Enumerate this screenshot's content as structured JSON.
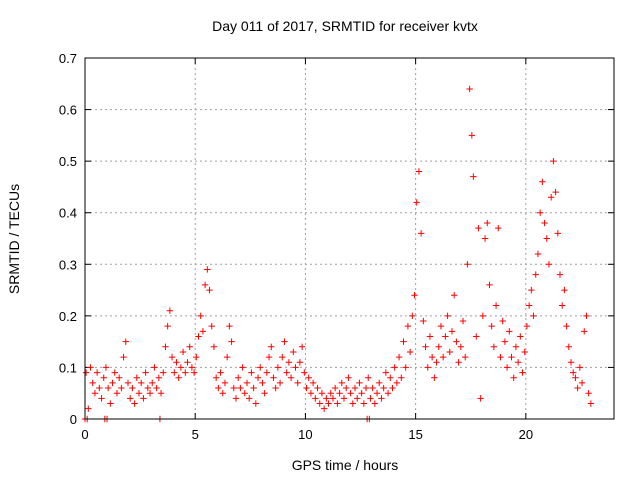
{
  "chart_data": {
    "type": "scatter",
    "title": "Day 011 of 2017, SRMTID for receiver kvtx",
    "xlabel": "GPS time / hours",
    "ylabel": "SRMTID / TECUs",
    "xlim": [
      0,
      24
    ],
    "ylim": [
      0,
      0.7
    ],
    "xticks": [
      0,
      5,
      10,
      15,
      20
    ],
    "yticks": [
      0,
      0.1,
      0.2,
      0.3,
      0.4,
      0.5,
      0.6,
      0.7
    ],
    "grid": true,
    "marker": "+",
    "color": "#ff0000",
    "series": [
      {
        "name": "SRMTID",
        "points": [
          [
            0.05,
            0.09
          ],
          [
            0.15,
            0.02
          ],
          [
            0.25,
            0.1
          ],
          [
            0.35,
            0.07
          ],
          [
            0.45,
            0.05
          ],
          [
            0.55,
            0.09
          ],
          [
            0.65,
            0.06
          ],
          [
            0.75,
            0.04
          ],
          [
            0.85,
            0.08
          ],
          [
            0.95,
            0.1
          ],
          [
            1.05,
            0.06
          ],
          [
            1.15,
            0.03
          ],
          [
            1.25,
            0.07
          ],
          [
            1.35,
            0.09
          ],
          [
            1.45,
            0.05
          ],
          [
            1.55,
            0.08
          ],
          [
            1.65,
            0.06
          ],
          [
            1.75,
            0.12
          ],
          [
            1.85,
            0.15
          ],
          [
            1.95,
            0.07
          ],
          [
            2.05,
            0.04
          ],
          [
            2.15,
            0.06
          ],
          [
            2.25,
            0.03
          ],
          [
            2.35,
            0.08
          ],
          [
            2.45,
            0.05
          ],
          [
            2.55,
            0.07
          ],
          [
            2.65,
            0.04
          ],
          [
            2.75,
            0.09
          ],
          [
            2.85,
            0.06
          ],
          [
            2.95,
            0.05
          ],
          [
            3.05,
            0.07
          ],
          [
            3.15,
            0.1
          ],
          [
            3.25,
            0.06
          ],
          [
            3.35,
            0.08
          ],
          [
            3.45,
            0.05
          ],
          [
            3.55,
            0.09
          ],
          [
            3.65,
            0.14
          ],
          [
            3.75,
            0.18
          ],
          [
            3.85,
            0.21
          ],
          [
            3.95,
            0.12
          ],
          [
            4.05,
            0.09
          ],
          [
            4.15,
            0.11
          ],
          [
            4.25,
            0.08
          ],
          [
            4.35,
            0.1
          ],
          [
            4.45,
            0.13
          ],
          [
            4.55,
            0.09
          ],
          [
            4.65,
            0.11
          ],
          [
            4.75,
            0.14
          ],
          [
            4.85,
            0.1
          ],
          [
            4.95,
            0.09
          ],
          [
            5.05,
            0.12
          ],
          [
            5.15,
            0.16
          ],
          [
            5.25,
            0.2
          ],
          [
            5.35,
            0.17
          ],
          [
            5.45,
            0.26
          ],
          [
            5.55,
            0.29
          ],
          [
            5.65,
            0.25
          ],
          [
            5.75,
            0.18
          ],
          [
            5.85,
            0.14
          ],
          [
            5.95,
            0.08
          ],
          [
            6.05,
            0.06
          ],
          [
            6.15,
            0.09
          ],
          [
            6.25,
            0.05
          ],
          [
            6.35,
            0.07
          ],
          [
            6.45,
            0.12
          ],
          [
            6.55,
            0.18
          ],
          [
            6.65,
            0.15
          ],
          [
            6.75,
            0.06
          ],
          [
            6.85,
            0.04
          ],
          [
            6.95,
            0.08
          ],
          [
            7.05,
            0.06
          ],
          [
            7.15,
            0.1
          ],
          [
            7.25,
            0.05
          ],
          [
            7.35,
            0.07
          ],
          [
            7.45,
            0.04
          ],
          [
            7.55,
            0.09
          ],
          [
            7.65,
            0.06
          ],
          [
            7.75,
            0.03
          ],
          [
            7.85,
            0.08
          ],
          [
            7.95,
            0.1
          ],
          [
            8.05,
            0.07
          ],
          [
            8.15,
            0.05
          ],
          [
            8.25,
            0.09
          ],
          [
            8.35,
            0.12
          ],
          [
            8.45,
            0.14
          ],
          [
            8.55,
            0.08
          ],
          [
            8.65,
            0.06
          ],
          [
            8.75,
            0.1
          ],
          [
            8.85,
            0.07
          ],
          [
            8.95,
            0.12
          ],
          [
            9.05,
            0.15
          ],
          [
            9.15,
            0.09
          ],
          [
            9.25,
            0.11
          ],
          [
            9.35,
            0.08
          ],
          [
            9.45,
            0.13
          ],
          [
            9.55,
            0.1
          ],
          [
            9.65,
            0.07
          ],
          [
            9.75,
            0.11
          ],
          [
            9.85,
            0.14
          ],
          [
            9.95,
            0.09
          ],
          [
            10.05,
            0.06
          ],
          [
            10.15,
            0.08
          ],
          [
            10.25,
            0.05
          ],
          [
            10.35,
            0.07
          ],
          [
            10.45,
            0.04
          ],
          [
            10.55,
            0.06
          ],
          [
            10.65,
            0.03
          ],
          [
            10.75,
            0.05
          ],
          [
            10.85,
            0.02
          ],
          [
            10.95,
            0.04
          ],
          [
            11.05,
            0.03
          ],
          [
            11.15,
            0.05
          ],
          [
            11.25,
            0.04
          ],
          [
            11.35,
            0.06
          ],
          [
            11.45,
            0.03
          ],
          [
            11.55,
            0.05
          ],
          [
            11.65,
            0.07
          ],
          [
            11.75,
            0.04
          ],
          [
            11.85,
            0.06
          ],
          [
            11.95,
            0.08
          ],
          [
            12.05,
            0.05
          ],
          [
            12.15,
            0.03
          ],
          [
            12.25,
            0.06
          ],
          [
            12.35,
            0.04
          ],
          [
            12.45,
            0.07
          ],
          [
            12.55,
            0.05
          ],
          [
            12.65,
            0.03
          ],
          [
            12.75,
            0.06
          ],
          [
            12.85,
            0.08
          ],
          [
            12.95,
            0.04
          ],
          [
            13.05,
            0.06
          ],
          [
            13.15,
            0.03
          ],
          [
            13.25,
            0.05
          ],
          [
            13.35,
            0.07
          ],
          [
            13.45,
            0.04
          ],
          [
            13.55,
            0.06
          ],
          [
            13.65,
            0.09
          ],
          [
            13.75,
            0.05
          ],
          [
            13.85,
            0.08
          ],
          [
            13.95,
            0.06
          ],
          [
            14.05,
            0.1
          ],
          [
            14.15,
            0.07
          ],
          [
            14.25,
            0.12
          ],
          [
            14.35,
            0.08
          ],
          [
            14.45,
            0.15
          ],
          [
            14.55,
            0.1
          ],
          [
            14.65,
            0.18
          ],
          [
            14.75,
            0.13
          ],
          [
            14.85,
            0.2
          ],
          [
            14.95,
            0.24
          ],
          [
            15.05,
            0.42
          ],
          [
            15.15,
            0.48
          ],
          [
            15.25,
            0.36
          ],
          [
            15.35,
            0.19
          ],
          [
            15.45,
            0.14
          ],
          [
            15.55,
            0.1
          ],
          [
            15.65,
            0.16
          ],
          [
            15.75,
            0.12
          ],
          [
            15.85,
            0.08
          ],
          [
            15.95,
            0.11
          ],
          [
            16.05,
            0.14
          ],
          [
            16.15,
            0.18
          ],
          [
            16.25,
            0.12
          ],
          [
            16.35,
            0.16
          ],
          [
            16.45,
            0.2
          ],
          [
            16.55,
            0.13
          ],
          [
            16.65,
            0.17
          ],
          [
            16.75,
            0.24
          ],
          [
            16.85,
            0.15
          ],
          [
            16.95,
            0.11
          ],
          [
            17.05,
            0.14
          ],
          [
            17.15,
            0.19
          ],
          [
            17.25,
            0.12
          ],
          [
            17.35,
            0.3
          ],
          [
            17.45,
            0.64
          ],
          [
            17.55,
            0.55
          ],
          [
            17.62,
            0.47
          ],
          [
            17.75,
            0.16
          ],
          [
            17.85,
            0.37
          ],
          [
            17.95,
            0.04
          ],
          [
            18.05,
            0.2
          ],
          [
            18.15,
            0.35
          ],
          [
            18.25,
            0.38
          ],
          [
            18.35,
            0.26
          ],
          [
            18.45,
            0.18
          ],
          [
            18.55,
            0.14
          ],
          [
            18.65,
            0.22
          ],
          [
            18.75,
            0.37
          ],
          [
            18.85,
            0.12
          ],
          [
            18.95,
            0.19
          ],
          [
            19.05,
            0.15
          ],
          [
            19.15,
            0.1
          ],
          [
            19.25,
            0.17
          ],
          [
            19.35,
            0.12
          ],
          [
            19.45,
            0.08
          ],
          [
            19.55,
            0.14
          ],
          [
            19.65,
            0.11
          ],
          [
            19.75,
            0.16
          ],
          [
            19.85,
            0.09
          ],
          [
            19.95,
            0.13
          ],
          [
            20.05,
            0.18
          ],
          [
            20.15,
            0.22
          ],
          [
            20.25,
            0.25
          ],
          [
            20.35,
            0.2
          ],
          [
            20.45,
            0.28
          ],
          [
            20.55,
            0.32
          ],
          [
            20.65,
            0.4
          ],
          [
            20.75,
            0.46
          ],
          [
            20.85,
            0.38
          ],
          [
            20.95,
            0.35
          ],
          [
            21.05,
            0.3
          ],
          [
            21.15,
            0.43
          ],
          [
            21.25,
            0.5
          ],
          [
            21.35,
            0.44
          ],
          [
            21.45,
            0.36
          ],
          [
            21.55,
            0.28
          ],
          [
            21.65,
            0.22
          ],
          [
            21.75,
            0.25
          ],
          [
            21.85,
            0.18
          ],
          [
            21.95,
            0.14
          ],
          [
            22.05,
            0.11
          ],
          [
            22.15,
            0.09
          ],
          [
            22.25,
            0.08
          ],
          [
            22.35,
            0.06
          ],
          [
            22.45,
            0.1
          ],
          [
            22.55,
            0.07
          ],
          [
            22.65,
            0.17
          ],
          [
            22.75,
            0.2
          ],
          [
            22.85,
            0.05
          ],
          [
            22.95,
            0.03
          ],
          [
            0.0,
            0.0
          ],
          [
            0.1,
            0.0
          ],
          [
            0.9,
            0.0
          ],
          [
            1.0,
            0.0
          ],
          [
            3.4,
            0.0
          ],
          [
            12.8,
            0.0
          ],
          [
            12.9,
            0.0
          ]
        ]
      }
    ]
  }
}
